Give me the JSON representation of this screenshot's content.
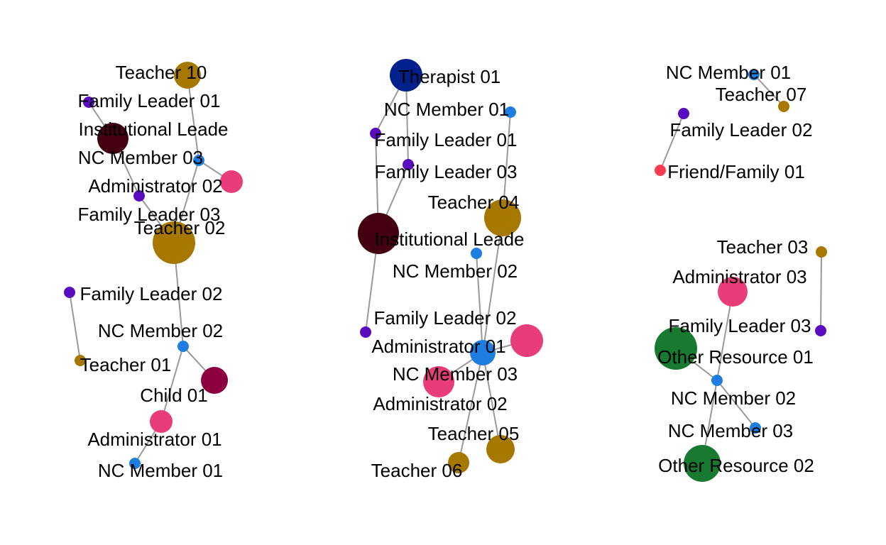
{
  "colors": {
    "Teacher": "#A67800",
    "Family Leader": "#5A0DBF",
    "Institutional Leader": "#420010",
    "NC Member": "#1E7DE0",
    "Administrator": "#E83D7A",
    "Child": "#8C0040",
    "Therapist": "#00208C",
    "Friend/Family": "#FF3B4F",
    "Other Resource": "#177A30",
    "edge": "#999999"
  },
  "panels": [
    {
      "id": "panel-1",
      "nodes": [
        {
          "id": "t10",
          "label": "Teacher 10",
          "role": "Teacher"
        },
        {
          "id": "fl01",
          "label": "Family Leader 01",
          "role": "Family Leader"
        },
        {
          "id": "il",
          "label": "Institutional Leade",
          "role": "Institutional Leader"
        },
        {
          "id": "nc03",
          "label": "NC Member 03",
          "role": "NC Member"
        },
        {
          "id": "adm02",
          "label": "Administrator 02",
          "role": "Administrator"
        },
        {
          "id": "fl03",
          "label": "Family Leader 03",
          "role": "Family Leader"
        },
        {
          "id": "t02",
          "label": "Teacher 02",
          "role": "Teacher"
        },
        {
          "id": "fl02",
          "label": "Family Leader 02",
          "role": "Family Leader"
        },
        {
          "id": "nc02",
          "label": "NC Member 02",
          "role": "NC Member"
        },
        {
          "id": "t01",
          "label": "Teacher 01",
          "role": "Teacher"
        },
        {
          "id": "ch01",
          "label": "Child 01",
          "role": "Child"
        },
        {
          "id": "adm01",
          "label": "Administrator 01",
          "role": "Administrator"
        },
        {
          "id": "nc01",
          "label": "NC Member 01",
          "role": "NC Member"
        }
      ],
      "edges": [
        [
          "t10",
          "nc03"
        ],
        [
          "fl01",
          "il"
        ],
        [
          "il",
          "fl03"
        ],
        [
          "nc03",
          "adm02"
        ],
        [
          "nc03",
          "t02"
        ],
        [
          "fl03",
          "t02"
        ],
        [
          "t02",
          "nc02"
        ],
        [
          "fl02",
          "t01"
        ],
        [
          "nc02",
          "ch01"
        ],
        [
          "nc02",
          "adm01"
        ],
        [
          "adm01",
          "nc01"
        ]
      ]
    },
    {
      "id": "panel-2",
      "nodes": [
        {
          "id": "th01",
          "label": "Therapist 01",
          "role": "Therapist"
        },
        {
          "id": "nc01",
          "label": "NC Member 01",
          "role": "NC Member"
        },
        {
          "id": "fl01",
          "label": "Family Leader 01",
          "role": "Family Leader"
        },
        {
          "id": "fl03",
          "label": "Family Leader 03",
          "role": "Family Leader"
        },
        {
          "id": "t04",
          "label": "Teacher 04",
          "role": "Teacher"
        },
        {
          "id": "il",
          "label": "Institutional Leade",
          "role": "Institutional Leader"
        },
        {
          "id": "nc02",
          "label": "NC Member 02",
          "role": "NC Member"
        },
        {
          "id": "fl02",
          "label": "Family Leader 02",
          "role": "Family Leader"
        },
        {
          "id": "adm01",
          "label": "Administrator 01",
          "role": "Administrator"
        },
        {
          "id": "nc03",
          "label": "NC Member 03",
          "role": "NC Member"
        },
        {
          "id": "adm02",
          "label": "Administrator 02",
          "role": "Administrator"
        },
        {
          "id": "t05",
          "label": "Teacher 05",
          "role": "Teacher"
        },
        {
          "id": "t06",
          "label": "Teacher 06",
          "role": "Teacher"
        }
      ],
      "edges": [
        [
          "th01",
          "fl01"
        ],
        [
          "th01",
          "fl03"
        ],
        [
          "fl01",
          "il"
        ],
        [
          "fl03",
          "il"
        ],
        [
          "nc01",
          "t04"
        ],
        [
          "il",
          "fl02"
        ],
        [
          "t04",
          "nc03"
        ],
        [
          "nc02",
          "nc03"
        ],
        [
          "adm01",
          "nc03"
        ],
        [
          "nc03",
          "adm02"
        ],
        [
          "nc03",
          "t05"
        ],
        [
          "nc03",
          "t06"
        ]
      ]
    },
    {
      "id": "panel-3",
      "nodes": [
        {
          "id": "nc01",
          "label": "NC Member 01",
          "role": "NC Member"
        },
        {
          "id": "t07",
          "label": "Teacher 07",
          "role": "Teacher"
        },
        {
          "id": "fl02",
          "label": "Family Leader 02",
          "role": "Family Leader"
        },
        {
          "id": "ff01",
          "label": "Friend/Family 01",
          "role": "Friend/Family"
        },
        {
          "id": "t03",
          "label": "Teacher 03",
          "role": "Teacher"
        },
        {
          "id": "adm03",
          "label": "Administrator 03",
          "role": "Administrator"
        },
        {
          "id": "fl03",
          "label": "Family Leader 03",
          "role": "Family Leader"
        },
        {
          "id": "or01",
          "label": "Other Resource 01",
          "role": "Other Resource"
        },
        {
          "id": "nc02",
          "label": "NC Member 02",
          "role": "NC Member"
        },
        {
          "id": "nc03",
          "label": "NC Member 03",
          "role": "NC Member"
        },
        {
          "id": "or02",
          "label": "Other Resource 02",
          "role": "Other Resource"
        }
      ],
      "edges": [
        [
          "nc01",
          "t07"
        ],
        [
          "fl02",
          "ff01"
        ],
        [
          "t03",
          "fl03"
        ],
        [
          "adm03",
          "nc02"
        ],
        [
          "or01",
          "nc02"
        ],
        [
          "nc02",
          "nc03"
        ],
        [
          "nc02",
          "or02"
        ]
      ]
    }
  ]
}
